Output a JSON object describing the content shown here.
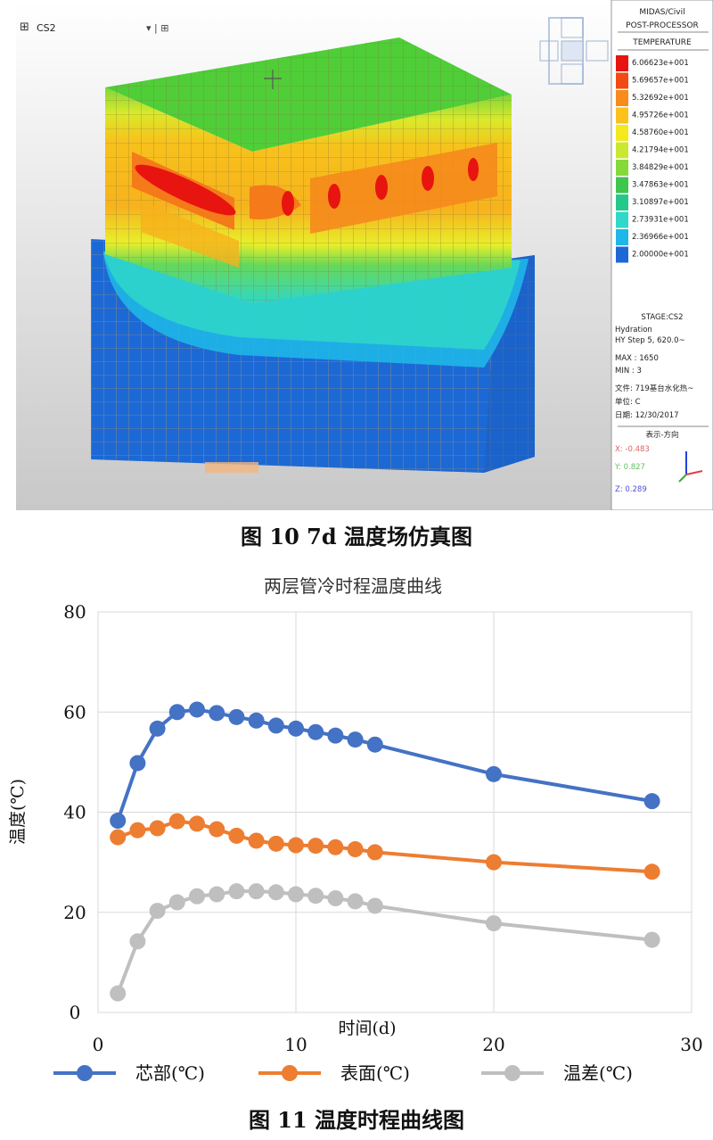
{
  "figure10": {
    "caption": "图 10  7d 温度场仿真图",
    "toolbar": {
      "stage_select": "CS2"
    },
    "panel": {
      "title1": "MIDAS/Civil",
      "title2": "POST-PROCESSOR",
      "title3": "TEMPERATURE",
      "legend": [
        {
          "value": "6.06623e+001",
          "color": "#e8140f"
        },
        {
          "value": "5.69657e+001",
          "color": "#f14a12"
        },
        {
          "value": "5.32692e+001",
          "color": "#f98a1c"
        },
        {
          "value": "4.95726e+001",
          "color": "#fbc21c"
        },
        {
          "value": "4.58760e+001",
          "color": "#f4e81f"
        },
        {
          "value": "4.21794e+001",
          "color": "#c8e832"
        },
        {
          "value": "3.84829e+001",
          "color": "#86d93a"
        },
        {
          "value": "3.47863e+001",
          "color": "#3fc64c"
        },
        {
          "value": "3.10897e+001",
          "color": "#24c98a"
        },
        {
          "value": "2.73931e+001",
          "color": "#2fd8c8"
        },
        {
          "value": "2.36966e+001",
          "color": "#1fb6e8"
        },
        {
          "value": "2.00000e+001",
          "color": "#1c69d6"
        }
      ],
      "info": [
        "STAGE:CS2",
        "Hydration",
        "HY Step 5, 620.0~",
        "MAX : 1650",
        "MIN : 3",
        "文件: 719基台水化热~",
        "单位: C",
        "日期: 12/30/2017"
      ],
      "view_label": "表示-方向",
      "axis_x": "X: -0.483",
      "axis_y": "Y: 0.827",
      "axis_z": "Z: 0.289"
    }
  },
  "figure11": {
    "caption": "图 11  温度时程曲线图",
    "chart_data": {
      "type": "line",
      "title": "两层管冷时程温度曲线",
      "xlabel": "时间(d)",
      "ylabel": "温度(℃)",
      "xlim": [
        0,
        30
      ],
      "ylim": [
        0,
        80
      ],
      "xticks": [
        0,
        10,
        20,
        30
      ],
      "yticks": [
        0,
        20,
        40,
        60,
        80
      ],
      "grid": true,
      "legend_position": "bottom",
      "series": [
        {
          "name": "芯部(℃)",
          "color": "#4472c4",
          "x": [
            1,
            2,
            3,
            4,
            5,
            6,
            7,
            8,
            9,
            10,
            11,
            12,
            13,
            14,
            20,
            28
          ],
          "y": [
            38.3,
            49.8,
            56.7,
            60.0,
            60.5,
            59.8,
            59.0,
            58.3,
            57.3,
            56.7,
            56.0,
            55.3,
            54.5,
            53.5,
            47.6,
            42.2
          ]
        },
        {
          "name": "表面(℃)",
          "color": "#ed7d31",
          "x": [
            1,
            2,
            3,
            4,
            5,
            6,
            7,
            8,
            9,
            10,
            11,
            12,
            13,
            14,
            20,
            28
          ],
          "y": [
            35.0,
            36.4,
            36.8,
            38.2,
            37.7,
            36.6,
            35.3,
            34.3,
            33.7,
            33.4,
            33.3,
            33.0,
            32.6,
            32.0,
            30.0,
            28.1
          ]
        },
        {
          "name": "温差(℃)",
          "color": "#bfbfbf",
          "x": [
            1,
            2,
            3,
            4,
            5,
            6,
            7,
            8,
            9,
            10,
            11,
            12,
            13,
            14,
            20,
            28
          ],
          "y": [
            3.8,
            14.2,
            20.3,
            22.0,
            23.2,
            23.6,
            24.2,
            24.2,
            24.0,
            23.6,
            23.3,
            22.8,
            22.2,
            21.3,
            17.8,
            14.5
          ]
        }
      ]
    }
  }
}
